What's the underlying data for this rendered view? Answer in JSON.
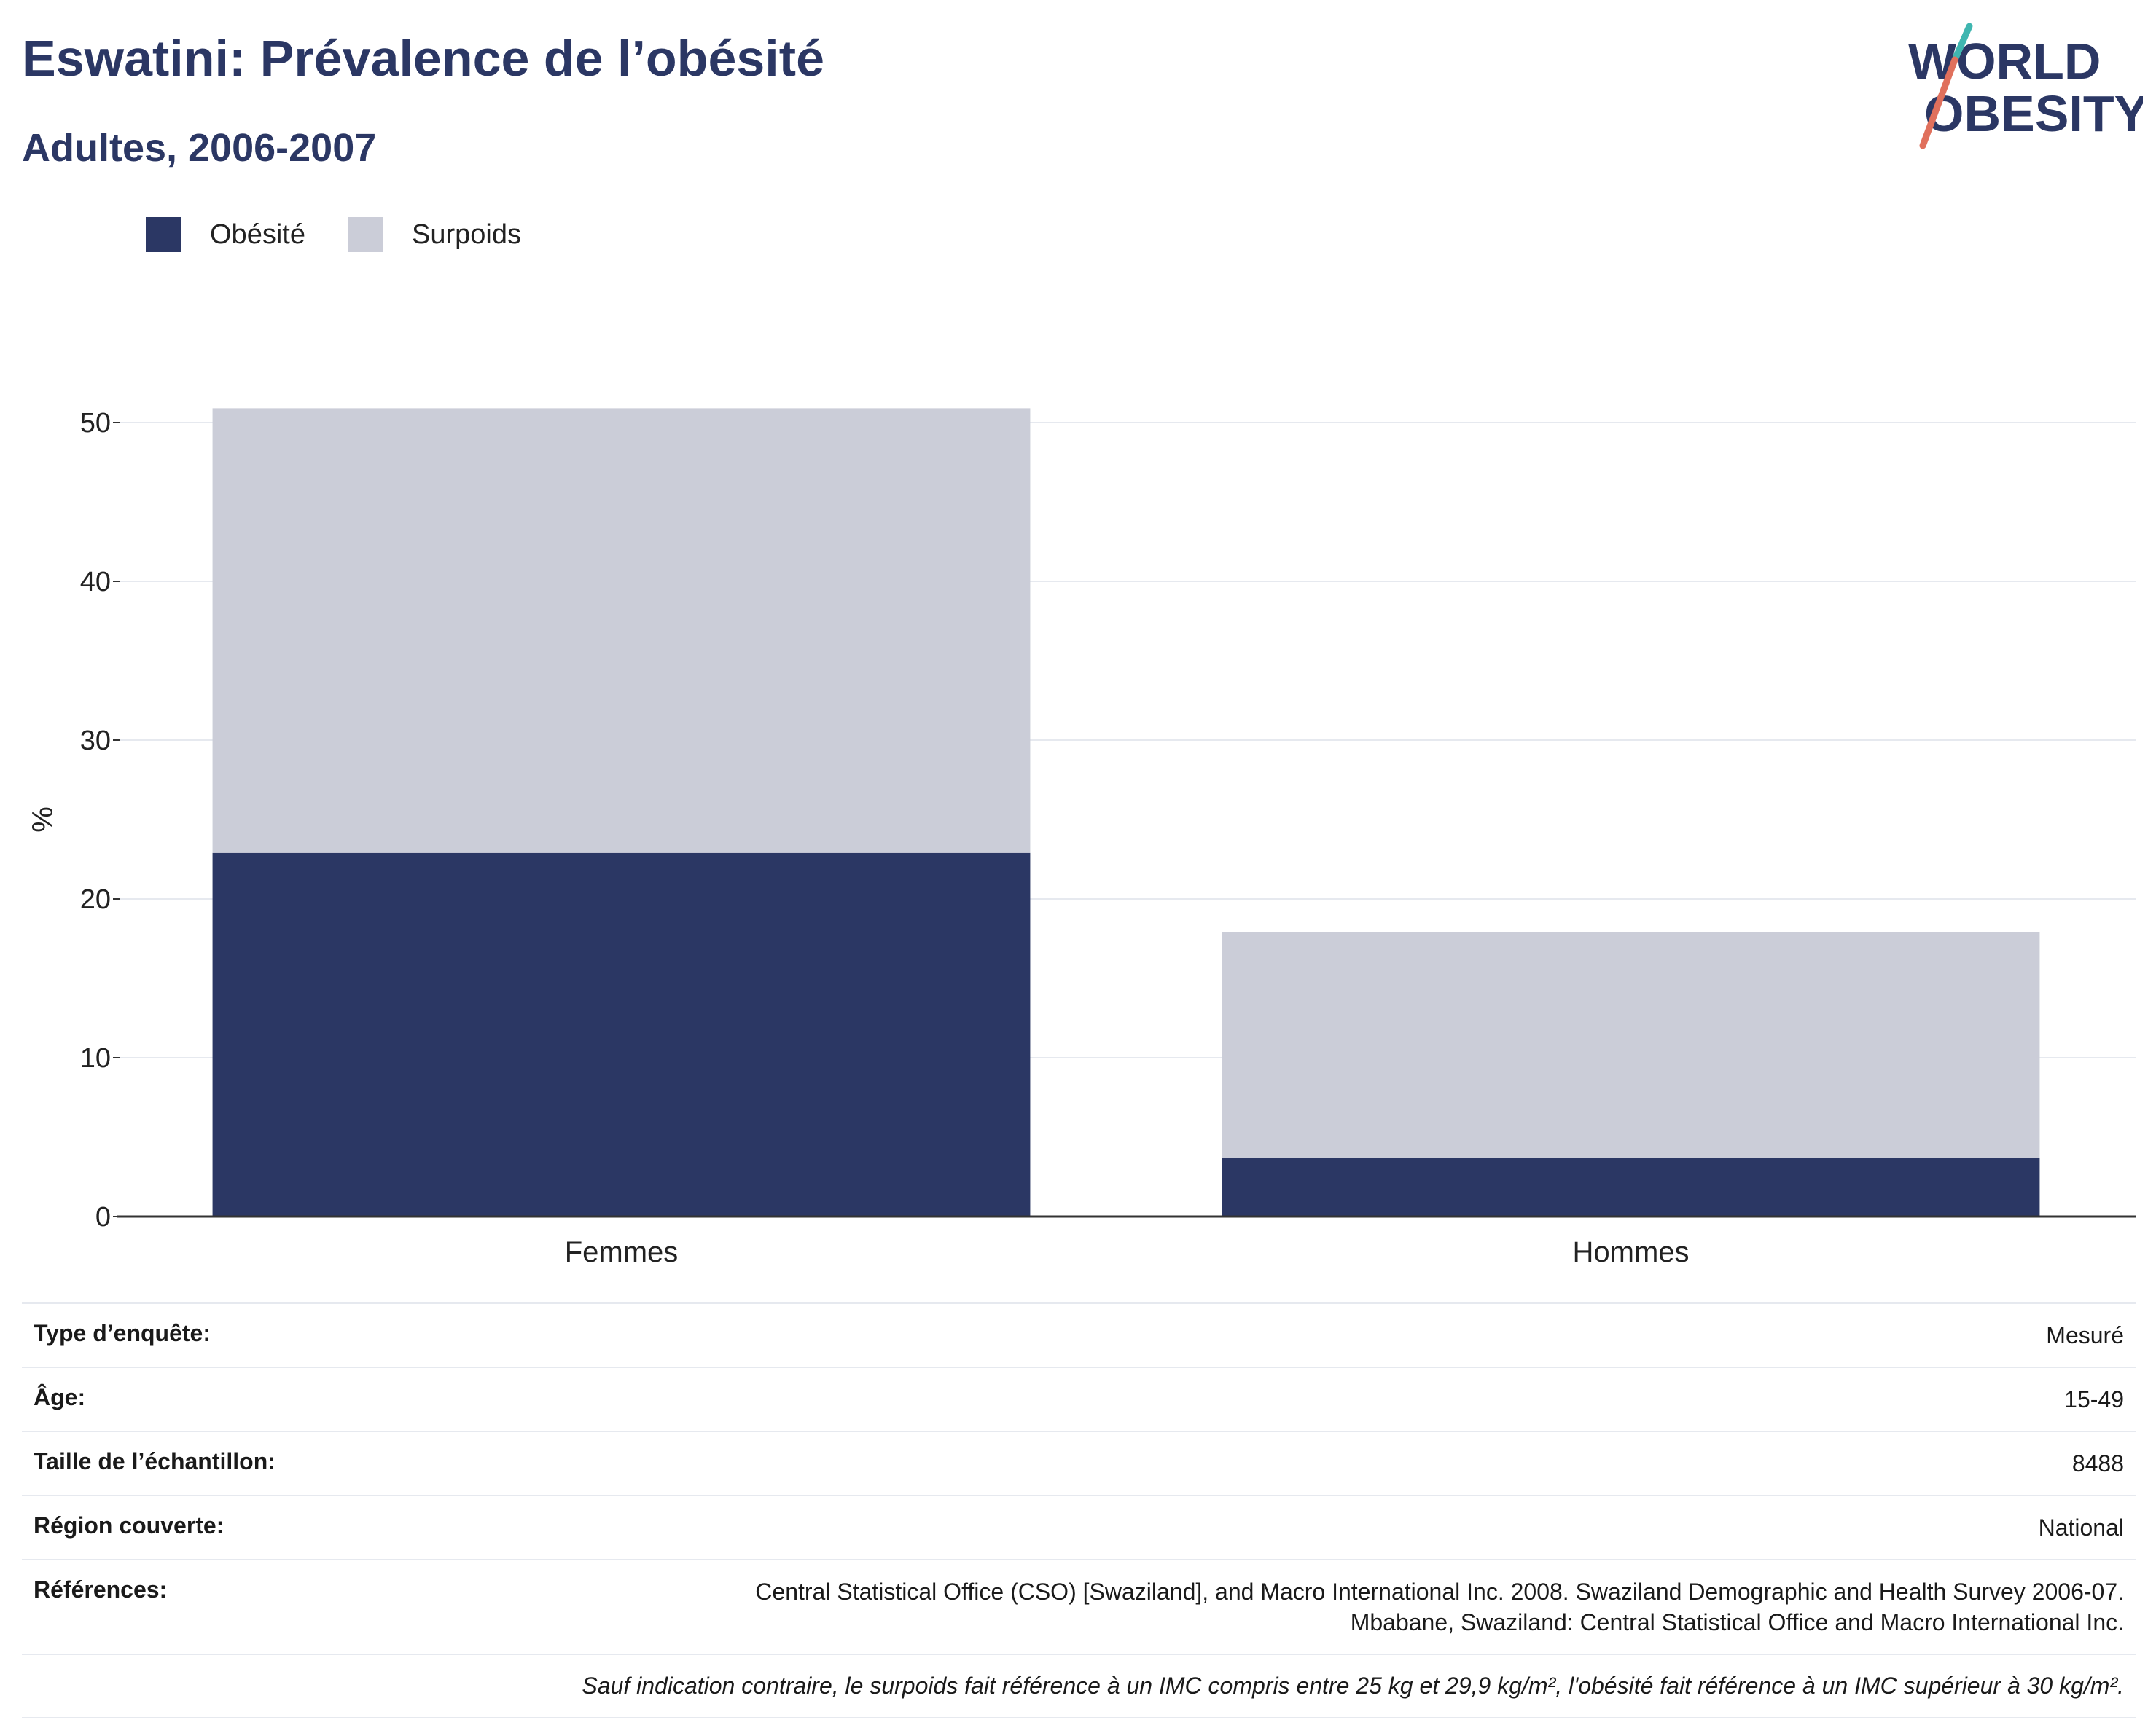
{
  "header": {
    "title": "Eswatini: Prévalence de l’obésité",
    "subtitle": "Adultes, 2006-2007"
  },
  "logo": {
    "line1": "WORLD",
    "line2": "OBESITY",
    "accent_colors": [
      "#3fb6b0",
      "#e0705c"
    ]
  },
  "colors": {
    "obesity": "#2b3764",
    "overweight": "#cbcdd8",
    "text": "#2b3764"
  },
  "legend": [
    {
      "label": "Obésité",
      "color": "#2b3764"
    },
    {
      "label": "Surpoids",
      "color": "#cbcdd8"
    }
  ],
  "chart_data": {
    "type": "bar",
    "stacked": true,
    "categories": [
      "Femmes",
      "Hommes"
    ],
    "series": [
      {
        "name": "Obésité",
        "values": [
          22.9,
          3.7
        ]
      },
      {
        "name": "Surpoids",
        "values": [
          28.0,
          14.2
        ]
      }
    ],
    "ylabel": "%",
    "ylim": [
      0,
      50
    ],
    "yticks": [
      0,
      10,
      20,
      30,
      40,
      50
    ],
    "grid": true,
    "legend_position": "top-left"
  },
  "info": {
    "rows": [
      {
        "key": "Type d’enquête:",
        "value": "Mesuré"
      },
      {
        "key": "Âge:",
        "value": "15-49"
      },
      {
        "key": "Taille de l’échantillon:",
        "value": "8488"
      },
      {
        "key": "Région couverte:",
        "value": "National"
      },
      {
        "key": "Références:",
        "value": "Central Statistical Office (CSO) [Swaziland], and Macro International Inc. 2008. Swaziland Demographic and Health Survey 2006-07.",
        "value2": "Mbabane, Swaziland: Central Statistical Office and Macro International Inc."
      }
    ],
    "note": "Sauf indication contraire, le surpoids fait référence à un IMC compris entre 25 kg et 29,9 kg/m², l'obésité fait référence à un IMC supérieur à 30 kg/m²."
  }
}
